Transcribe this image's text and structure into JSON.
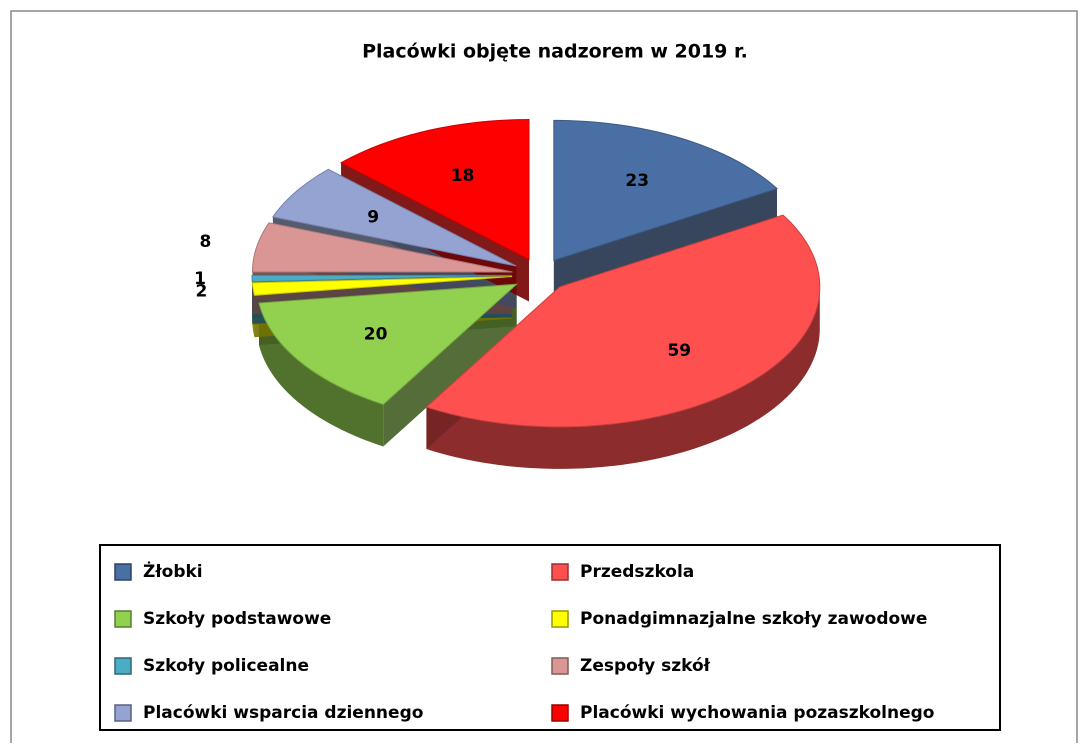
{
  "chart_data": {
    "type": "pie3d",
    "title": "Placówki objęte nadzorem w 2019 r.",
    "categories": [
      "Żłobki",
      "Przedszkola",
      "Szkoły podstawowe",
      "Ponadgimnazjalne szkoły zawodowe",
      "Szkoły policealne",
      "Zespoły szkół",
      "Placówki wsparcia dziennego",
      "Placówki wychowania pozaszkolnego"
    ],
    "values": [
      23,
      59,
      20,
      2,
      1,
      8,
      9,
      18
    ],
    "colors": [
      "#4a6fa5",
      "#ff5050",
      "#92d050",
      "#ffff00",
      "#4bacc6",
      "#d99694",
      "#95a3d3",
      "#ff0000"
    ]
  }
}
